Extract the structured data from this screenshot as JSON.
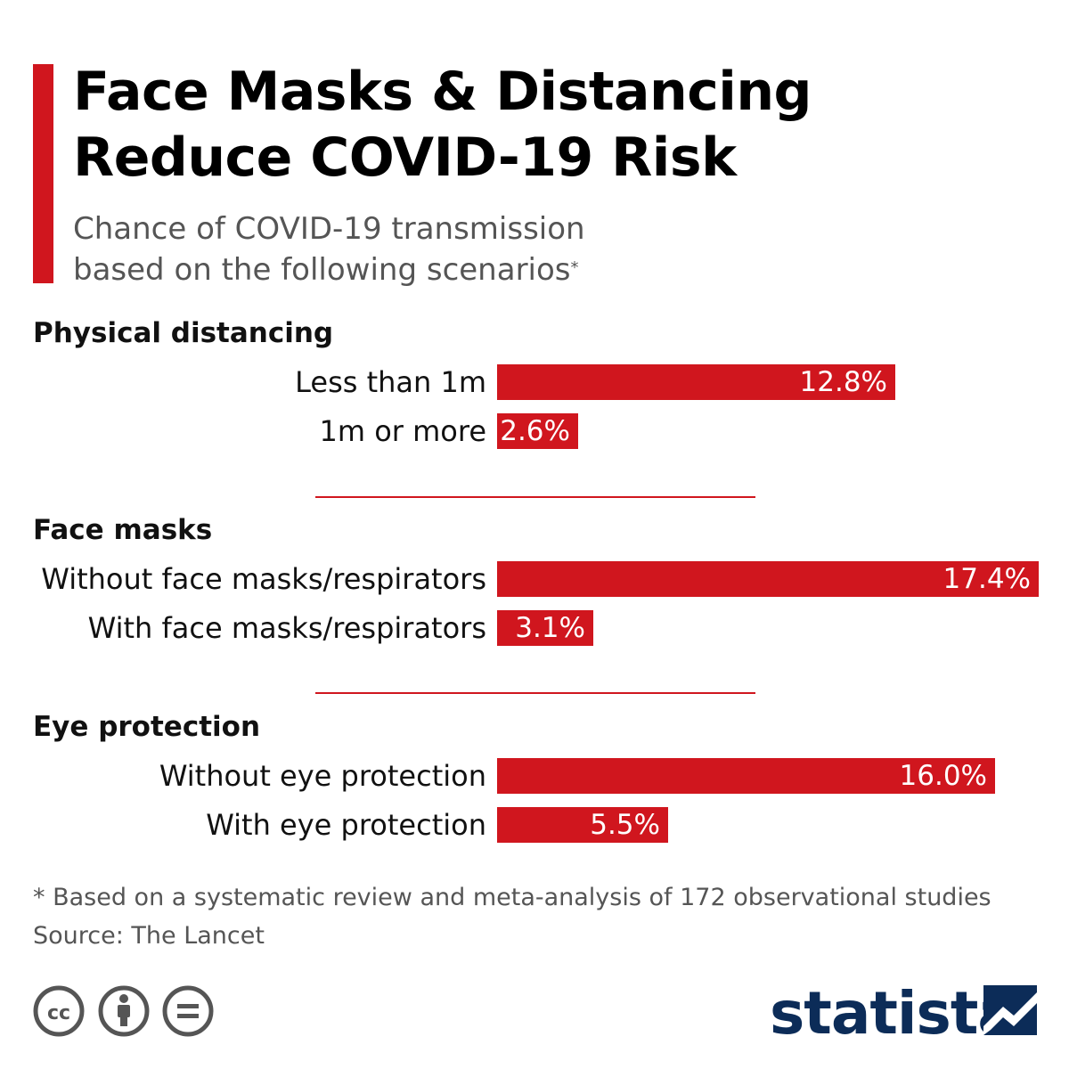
{
  "header": {
    "title_line1": "Face Masks & Distancing",
    "title_line2": "Reduce COVID-19 Risk",
    "subtitle_line1": "Chance of COVID-19 transmission",
    "subtitle_line2": "based on the following scenarios",
    "subtitle_marker": "*"
  },
  "colors": {
    "accent": "#d0161e",
    "brand": "#0c2c58",
    "muted_text": "#555555"
  },
  "chart_data": {
    "type": "bar",
    "orientation": "horizontal",
    "unit": "%",
    "xlim": [
      0,
      17.4
    ],
    "groups": [
      {
        "name": "Physical distancing",
        "categories": [
          "Less than 1m",
          "1m or more"
        ],
        "values": [
          12.8,
          2.6
        ],
        "labels": [
          "12.8%",
          "2.6%"
        ]
      },
      {
        "name": "Face masks",
        "categories": [
          "Without face masks/respirators",
          "With face masks/respirators"
        ],
        "values": [
          17.4,
          3.1
        ],
        "labels": [
          "17.4%",
          "3.1%"
        ]
      },
      {
        "name": "Eye protection",
        "categories": [
          "Without eye protection",
          "With eye protection"
        ],
        "values": [
          16.0,
          5.5
        ],
        "labels": [
          "16.0%",
          "5.5%"
        ]
      }
    ]
  },
  "footer": {
    "footnote": "* Based on a systematic review and meta-analysis of 172 observational studies",
    "source": "Source: The Lancet",
    "brand": "statista",
    "license_icons": [
      "cc-icon",
      "attribution-icon",
      "no-derivatives-icon"
    ]
  }
}
